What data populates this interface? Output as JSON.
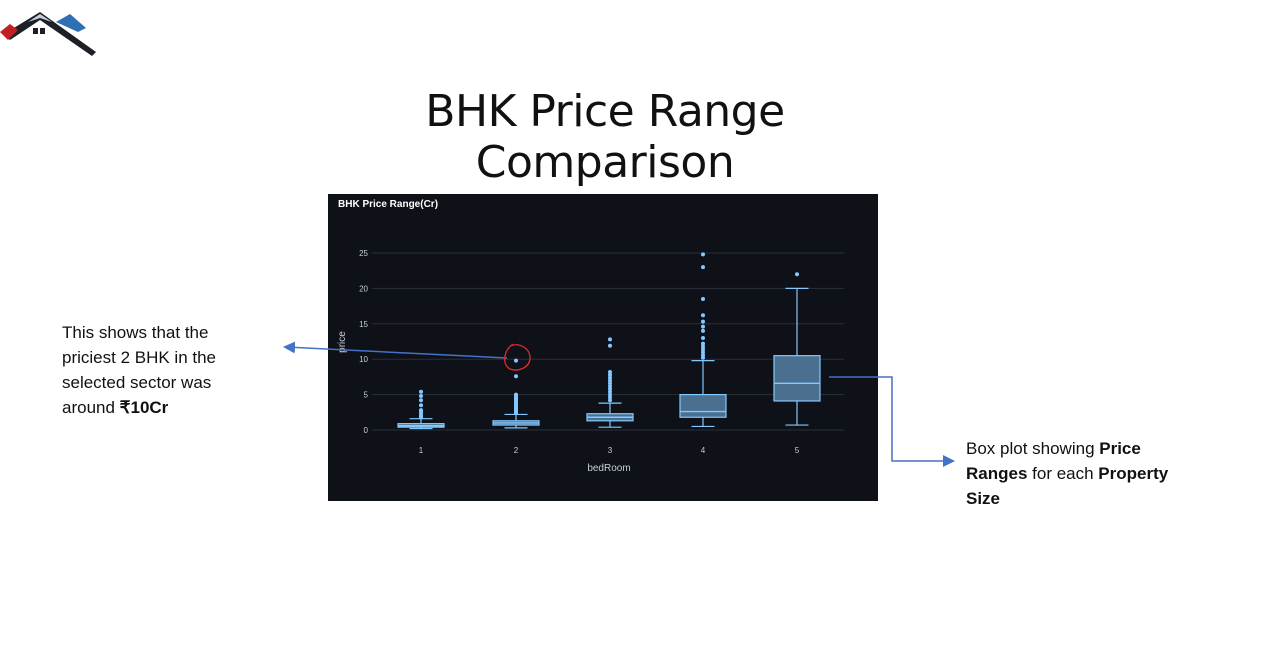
{
  "slide": {
    "title": "BHK Price Range Comparison"
  },
  "colors": {
    "panel_bg": "#0e1117",
    "box_fill": "#4a6f8f",
    "box_stroke": "#83c9ff",
    "grid": "#2a2f3a",
    "text": "#c9ced6",
    "arrow": "#4472c4",
    "highlight": "#e0292d"
  },
  "icons": {
    "logo": "house-roofs-logo"
  },
  "annotations": {
    "left": {
      "line1": "This shows that the",
      "line2": "priciest 2 BHK in the",
      "line3": "selected sector was",
      "line4_prefix": "around ",
      "line4_bold": "₹10Cr"
    },
    "right": {
      "p1": "Box plot showing ",
      "b1": "Price Ranges",
      "p2": " for each ",
      "b2": "Property Size"
    }
  },
  "chart_data": {
    "type": "box",
    "title": "BHK Price Range(Cr)",
    "xlabel": "bedRoom",
    "ylabel": "price",
    "ylim": [
      -1,
      26
    ],
    "yticks": [
      0,
      5,
      10,
      15,
      20,
      25
    ],
    "grid": true,
    "categories": [
      "1",
      "2",
      "3",
      "4",
      "5"
    ],
    "boxes": [
      {
        "category": "1",
        "min": 0.2,
        "q1": 0.4,
        "median": 0.6,
        "q3": 0.9,
        "max": 1.6,
        "outliers": [
          1.8,
          2.0,
          2.3,
          2.6,
          2.8,
          3.5,
          4.2,
          4.8,
          5.4
        ]
      },
      {
        "category": "2",
        "min": 0.3,
        "q1": 0.7,
        "median": 1.0,
        "q3": 1.3,
        "max": 2.2,
        "outliers": [
          2.4,
          2.6,
          2.8,
          3.0,
          3.2,
          3.4,
          3.6,
          3.8,
          4.0,
          4.2,
          4.4,
          4.6,
          4.8,
          5.0,
          7.6,
          9.8
        ]
      },
      {
        "category": "3",
        "min": 0.4,
        "q1": 1.3,
        "median": 1.8,
        "q3": 2.3,
        "max": 3.8,
        "outliers": [
          4.2,
          4.6,
          5.0,
          5.4,
          5.8,
          6.2,
          6.6,
          7.0,
          7.4,
          7.8,
          8.2,
          11.9,
          12.8
        ]
      },
      {
        "category": "4",
        "min": 0.5,
        "q1": 1.8,
        "median": 2.6,
        "q3": 5.0,
        "max": 9.8,
        "outliers": [
          10.2,
          10.6,
          11.0,
          11.4,
          11.8,
          12.2,
          13.0,
          14.0,
          14.6,
          15.3,
          16.2,
          18.5,
          23.0,
          24.8
        ]
      },
      {
        "category": "5",
        "min": 0.7,
        "q1": 4.1,
        "median": 6.6,
        "q3": 10.5,
        "max": 20.0,
        "outliers": [
          22.0
        ]
      }
    ],
    "highlighted_outlier": {
      "category": "2",
      "value": 9.8
    }
  }
}
